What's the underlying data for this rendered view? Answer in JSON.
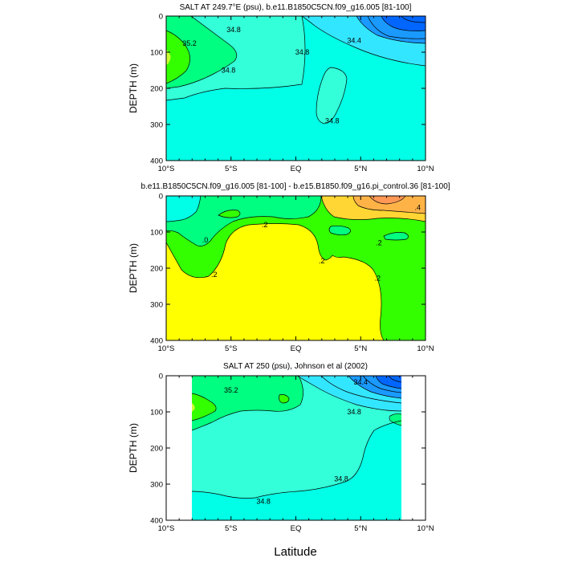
{
  "colors": {
    "cyan": "#00ffe6",
    "aqua": "#33ffd9",
    "green": "#00ff80",
    "lime": "#33ff00",
    "yellow": "#ffff00",
    "orange": "#ffd633",
    "light_blue": "#33e6ff",
    "blue": "#1a99ff",
    "deep_blue": "#0066ff"
  },
  "x_label": "Latitude",
  "chart_data": [
    {
      "type": "contour",
      "title": "SALT AT 249.7°E (psu), b.e11.B1850C5CN.f09_g16.005 [81-100]",
      "ylabel": "DEPTH (m)",
      "xlim": [
        -10,
        10
      ],
      "ylim": [
        400,
        0
      ],
      "y_ticks": [
        "0",
        "100",
        "200",
        "300",
        "400"
      ],
      "x_ticks": [
        "10°S",
        "5°S",
        "EQ",
        "5°N",
        "10°N"
      ],
      "contour_labels": [
        {
          "text": "35.2",
          "x": -8.2,
          "y": 75
        },
        {
          "text": "34.8",
          "x": -4.8,
          "y": 38
        },
        {
          "text": "34.8",
          "x": -5.2,
          "y": 150
        },
        {
          "text": "34.8",
          "x": 0.5,
          "y": 100
        },
        {
          "text": "34.4",
          "x": 4.5,
          "y": 68
        },
        {
          "text": "34.8",
          "x": 2.8,
          "y": 290
        }
      ]
    },
    {
      "type": "contour",
      "title": "b.e11.B1850C5CN.f09_g16.005 [81-100] - b.e15.B1850.f09_g16.pi_control.36 [81-100]",
      "ylabel": "DEPTH (m)",
      "xlim": [
        -10,
        10
      ],
      "ylim": [
        400,
        0
      ],
      "y_ticks": [
        "0",
        "100",
        "200",
        "300",
        "400"
      ],
      "x_ticks": [
        "10°S",
        "5°S",
        "EQ",
        "5°N",
        "10°N"
      ],
      "contour_labels": [
        {
          "text": ".0",
          "x": -7,
          "y": 122
        },
        {
          "text": ".2",
          "x": -6.3,
          "y": 218
        },
        {
          "text": ".2",
          "x": -2.4,
          "y": 80
        },
        {
          "text": ".2",
          "x": 2.0,
          "y": 180
        },
        {
          "text": ".2",
          "x": 6.4,
          "y": 130
        },
        {
          "text": ".2",
          "x": 6.3,
          "y": 228
        },
        {
          "text": ".4",
          "x": 9.4,
          "y": 32
        }
      ]
    },
    {
      "type": "contour",
      "title": "SALT AT 250 (psu), Johnson et al (2002)",
      "ylabel": "DEPTH (m)",
      "xlim": [
        -10,
        10
      ],
      "ylim": [
        400,
        0
      ],
      "data_xlim": [
        -8,
        8.2
      ],
      "y_ticks": [
        "0",
        "100",
        "200",
        "300",
        "400"
      ],
      "x_ticks": [
        "10°S",
        "5°S",
        "EQ",
        "5°N",
        "10°N"
      ],
      "contour_labels": [
        {
          "text": "35.2",
          "x": -5,
          "y": 40
        },
        {
          "text": "34.4",
          "x": 5,
          "y": 18
        },
        {
          "text": "34.8",
          "x": 4.5,
          "y": 100
        },
        {
          "text": "34.8",
          "x": 3.5,
          "y": 285
        },
        {
          "text": "34.8",
          "x": -2.5,
          "y": 348
        }
      ]
    }
  ]
}
